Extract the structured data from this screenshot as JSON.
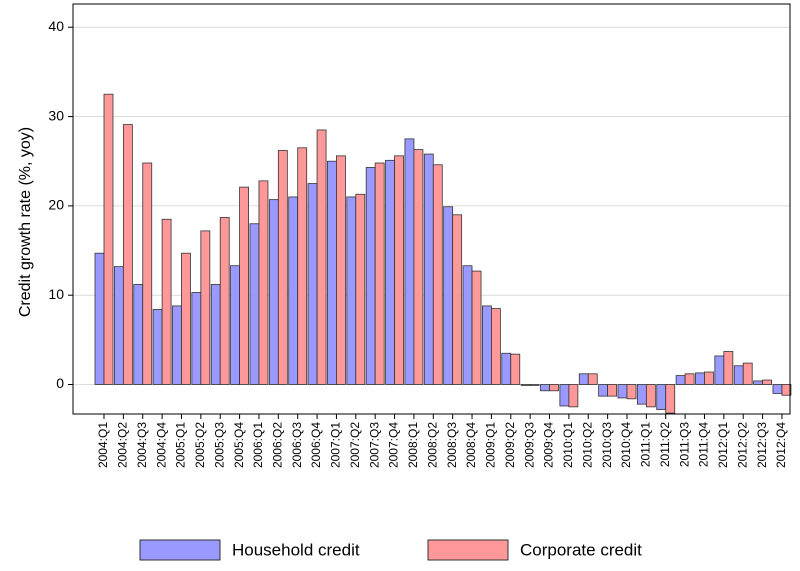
{
  "chart_data": {
    "type": "bar",
    "y_label": "Credit growth rate (%, yoy)",
    "categories": [
      "2004:Q1",
      "2004:Q2",
      "2004:Q3",
      "2004:Q4",
      "2005:Q1",
      "2005:Q2",
      "2005:Q3",
      "2005:Q4",
      "2006:Q1",
      "2006:Q2",
      "2006:Q3",
      "2006:Q4",
      "2007:Q1",
      "2007:Q2",
      "2007:Q3",
      "2007:Q4",
      "2008:Q1",
      "2008:Q2",
      "2008:Q3",
      "2008:Q4",
      "2009:Q1",
      "2009:Q2",
      "2009:Q3",
      "2009:Q4",
      "2010:Q1",
      "2010:Q2",
      "2010:Q3",
      "2010:Q4",
      "2011:Q1",
      "2011:Q2",
      "2011:Q3",
      "2011:Q4",
      "2012:Q1",
      "2012:Q2",
      "2012:Q3",
      "2012:Q4"
    ],
    "series": [
      {
        "name": "Household credit",
        "color": "#9999ff",
        "values": [
          14.7,
          13.2,
          11.2,
          8.4,
          8.8,
          10.3,
          11.2,
          13.3,
          18.0,
          20.7,
          21.0,
          22.5,
          25.0,
          21.0,
          24.3,
          25.1,
          27.5,
          25.8,
          19.9,
          13.3,
          8.8,
          3.5,
          -0.1,
          -0.7,
          -2.4,
          1.2,
          -1.3,
          -1.5,
          -2.2,
          -2.8,
          1.0,
          1.3,
          3.2,
          2.1,
          0.4,
          -1.0
        ]
      },
      {
        "name": "Corporate credit",
        "color": "#ff9999",
        "values": [
          32.5,
          29.1,
          24.8,
          18.5,
          14.7,
          17.2,
          18.7,
          22.1,
          22.8,
          26.2,
          26.5,
          28.5,
          25.6,
          21.3,
          24.8,
          25.6,
          26.3,
          24.6,
          19.0,
          12.7,
          8.5,
          3.4,
          -0.1,
          -0.7,
          -2.5,
          1.2,
          -1.3,
          -1.6,
          -2.5,
          -3.2,
          1.2,
          1.4,
          3.7,
          2.4,
          0.5,
          -1.2
        ]
      }
    ],
    "ylim": [
      -3.3,
      42.6
    ],
    "yticks": [
      0,
      10,
      20,
      30,
      40
    ],
    "grid": true
  }
}
